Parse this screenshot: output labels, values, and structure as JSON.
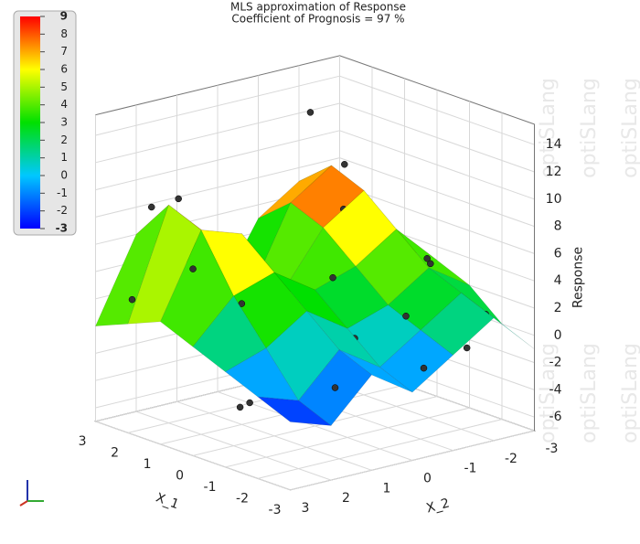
{
  "chart_data": {
    "type": "surface3d",
    "title": "MLS approximation of Response",
    "subtitle": "Coefficient of Prognosis =     97 %",
    "x1_label": "X_1",
    "x2_label": "X_2",
    "z_label": "Response",
    "x1lim": [
      -3,
      3
    ],
    "x2lim": [
      -3,
      3
    ],
    "zlim": [
      -7,
      15.5
    ],
    "x1ticks": [
      3,
      2,
      1,
      0,
      -1,
      -2,
      -3
    ],
    "x2ticks": [
      -3,
      -2,
      -1,
      0,
      1,
      2,
      3
    ],
    "zticks": [
      -6,
      -4,
      -2,
      0,
      2,
      4,
      6,
      8,
      10,
      12,
      14
    ],
    "grid": true,
    "colormap": [
      "#0000ff",
      "#00c8ff",
      "#00e000",
      "#ffff00",
      "#ff0000"
    ],
    "clim": [
      -3,
      9
    ],
    "colorbar_ticks": [
      9,
      8,
      7,
      6,
      5,
      4,
      3,
      2,
      1,
      0,
      -1,
      -2,
      -3
    ],
    "surface": {
      "x1": [
        -3,
        -2,
        -1,
        0,
        1,
        2,
        3
      ],
      "x2": [
        -3,
        -2,
        -1,
        0,
        1,
        2,
        3
      ],
      "z": [
        [
          -1,
          2,
          0,
          -2,
          0,
          -3,
          -2
        ],
        [
          0,
          3,
          1,
          -1,
          1,
          -2,
          -1
        ],
        [
          2,
          4,
          2,
          1,
          3,
          1,
          0
        ],
        [
          3,
          6,
          4,
          3,
          5,
          4,
          1
        ],
        [
          3,
          8,
          6,
          2,
          7,
          8,
          2
        ],
        [
          2,
          9,
          7,
          1,
          6,
          9,
          1
        ],
        [
          1,
          7,
          5,
          0,
          4,
          6,
          0
        ]
      ]
    },
    "points": {
      "color": "#333333",
      "x1": [
        2.5,
        1.8,
        0.5,
        -0.5,
        -1.5,
        -2.5,
        2.8,
        1.2,
        0.2,
        -1.0,
        -2.2,
        2.0,
        0.8,
        -0.3,
        -1.8,
        -2.8,
        1.5,
        0.0,
        -1.2,
        2.6,
        1.0,
        -0.8,
        -2.0,
        2.2,
        0.4,
        -1.6,
        -2.6,
        1.4,
        -0.2,
        2.9
      ],
      "x2": [
        2.5,
        2.0,
        2.6,
        2.2,
        2.8,
        1.5,
        0.5,
        1.0,
        0.2,
        1.2,
        0.8,
        -0.5,
        -1.0,
        -0.2,
        -0.8,
        -1.5,
        -2.0,
        -2.5,
        -1.8,
        -2.8,
        -1.5,
        -2.2,
        -2.6,
        1.6,
        -1.2,
        0.3,
        -0.6,
        2.9,
        2.0,
        -2.2
      ],
      "z": [
        2,
        8,
        6,
        4,
        -2,
        -1,
        1,
        5,
        3,
        2,
        -1,
        1,
        3,
        4,
        2,
        0,
        6,
        3,
        5,
        8,
        7,
        4,
        1,
        9,
        2,
        1,
        -1,
        10,
        -4,
        12
      ]
    },
    "watermark": "optiSLang"
  }
}
